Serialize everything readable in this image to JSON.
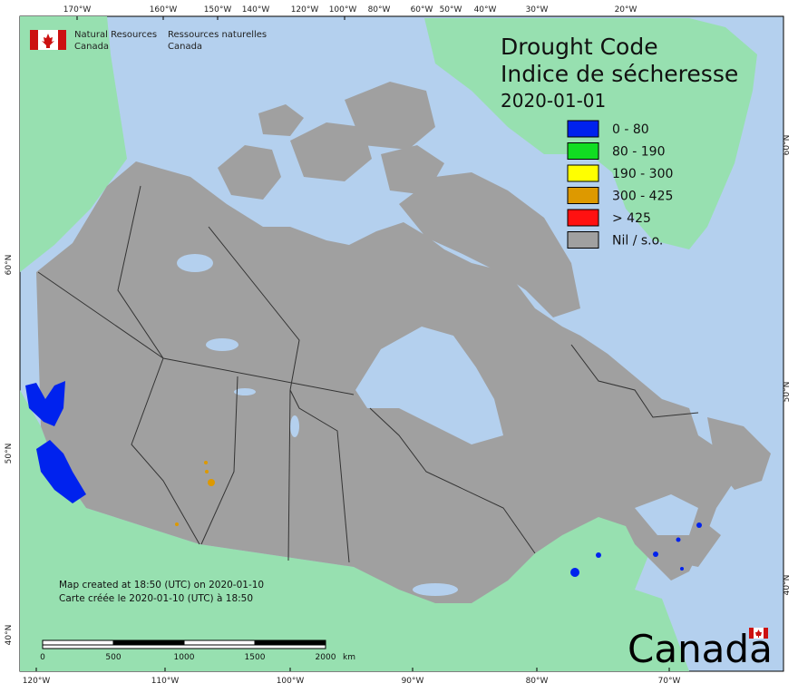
{
  "header": {
    "agency_en_line1": "Natural Resources",
    "agency_en_line2": "Canada",
    "agency_fr_line1": "Ressources naturelles",
    "agency_fr_line2": "Canada"
  },
  "title": {
    "en": "Drought Code",
    "fr": "Indice de sécheresse",
    "date": "2020-01-01"
  },
  "legend": [
    {
      "label": "0 - 80",
      "color": "#0022ee"
    },
    {
      "label": "80 - 190",
      "color": "#11dd22"
    },
    {
      "label": "190 - 300",
      "color": "#ffff00"
    },
    {
      "label": "300 - 425",
      "color": "#dd9900"
    },
    {
      "label": "> 425",
      "color": "#ff1111"
    },
    {
      "label": "Nil / s.o.",
      "color": "#a0a0a0"
    }
  ],
  "credits": {
    "en": "Map created at 18:50 (UTC) on 2020-01-10",
    "fr": "Carte créée le 2020-01-10 (UTC) à 18:50"
  },
  "scale_bar": {
    "ticks": [
      "0",
      "500",
      "1000",
      "1500",
      "2000"
    ],
    "unit": "km"
  },
  "top_longitudes": [
    "170°W",
    "160°W",
    "150°W",
    "140°W",
    "120°W",
    "100°W",
    "80°W",
    "60°W",
    "50°W",
    "40°W",
    "30°W",
    "20°W"
  ],
  "bottom_longitudes": [
    "120°W",
    "110°W",
    "100°W",
    "90°W",
    "80°W",
    "70°W"
  ],
  "left_latitudes": [
    "60°N",
    "50°N",
    "40°N"
  ],
  "right_latitudes": [
    "60°N",
    "50°N",
    "40°N"
  ],
  "wordmark": "Canada",
  "colors": {
    "ocean": "#b4d0ee",
    "land_other": "#97e0b0",
    "canada": "#a0a0a0",
    "border": "#333333",
    "flag_red": "#cc1111"
  }
}
